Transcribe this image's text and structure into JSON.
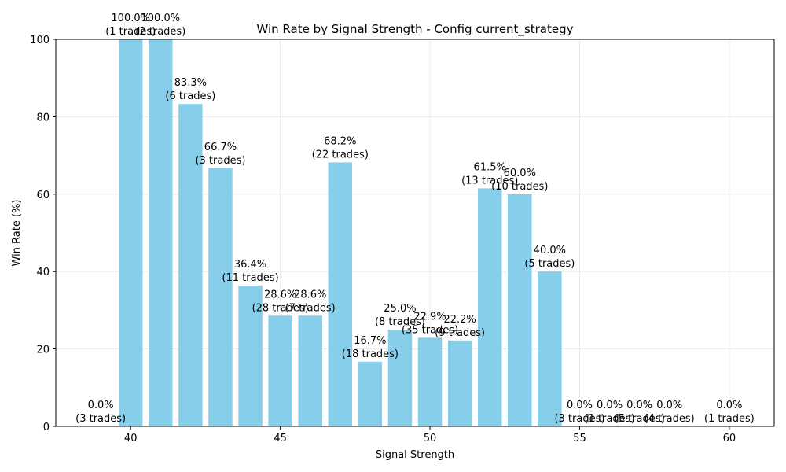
{
  "chart_data": {
    "type": "bar",
    "title": "Win Rate by Signal Strength - Config current_strategy",
    "xlabel": "Signal Strength",
    "ylabel": "Win Rate (%)",
    "xlim": [
      37.5,
      61.5
    ],
    "ylim": [
      0,
      100
    ],
    "xticks": [
      40,
      45,
      50,
      55,
      60
    ],
    "yticks": [
      0,
      20,
      40,
      60,
      80,
      100
    ],
    "grid": true,
    "bar_color": "#87ceeb",
    "points": [
      {
        "x": 39,
        "value": 0.0,
        "label": "0.0%",
        "trades": "(3 trades)"
      },
      {
        "x": 40,
        "value": 100.0,
        "label": "100.0%",
        "trades": "(1 trades)"
      },
      {
        "x": 41,
        "value": 100.0,
        "label": "100.0%",
        "trades": "(2 trades)"
      },
      {
        "x": 42,
        "value": 83.3,
        "label": "83.3%",
        "trades": "(6 trades)"
      },
      {
        "x": 43,
        "value": 66.7,
        "label": "66.7%",
        "trades": "(3 trades)"
      },
      {
        "x": 44,
        "value": 36.4,
        "label": "36.4%",
        "trades": "(11 trades)"
      },
      {
        "x": 45,
        "value": 28.6,
        "label": "28.6%",
        "trades": "(28 trades)"
      },
      {
        "x": 46,
        "value": 28.6,
        "label": "28.6%",
        "trades": "(7 trades)"
      },
      {
        "x": 47,
        "value": 68.2,
        "label": "68.2%",
        "trades": "(22 trades)"
      },
      {
        "x": 48,
        "value": 16.7,
        "label": "16.7%",
        "trades": "(18 trades)"
      },
      {
        "x": 49,
        "value": 25.0,
        "label": "25.0%",
        "trades": "(8 trades)"
      },
      {
        "x": 50,
        "value": 22.9,
        "label": "22.9%",
        "trades": "(35 trades)"
      },
      {
        "x": 51,
        "value": 22.2,
        "label": "22.2%",
        "trades": "(9 trades)"
      },
      {
        "x": 52,
        "value": 61.5,
        "label": "61.5%",
        "trades": "(13 trades)"
      },
      {
        "x": 53,
        "value": 60.0,
        "label": "60.0%",
        "trades": "(10 trades)"
      },
      {
        "x": 54,
        "value": 40.0,
        "label": "40.0%",
        "trades": "(5 trades)"
      },
      {
        "x": 55,
        "value": 0.0,
        "label": "0.0%",
        "trades": "(3 trades)"
      },
      {
        "x": 56,
        "value": 0.0,
        "label": "0.0%",
        "trades": "(1 trades)"
      },
      {
        "x": 57,
        "value": 0.0,
        "label": "0.0%",
        "trades": "(5 trades)"
      },
      {
        "x": 58,
        "value": 0.0,
        "label": "0.0%",
        "trades": "(4 trades)"
      },
      {
        "x": 60,
        "value": 0.0,
        "label": "0.0%",
        "trades": "(1 trades)"
      }
    ]
  }
}
